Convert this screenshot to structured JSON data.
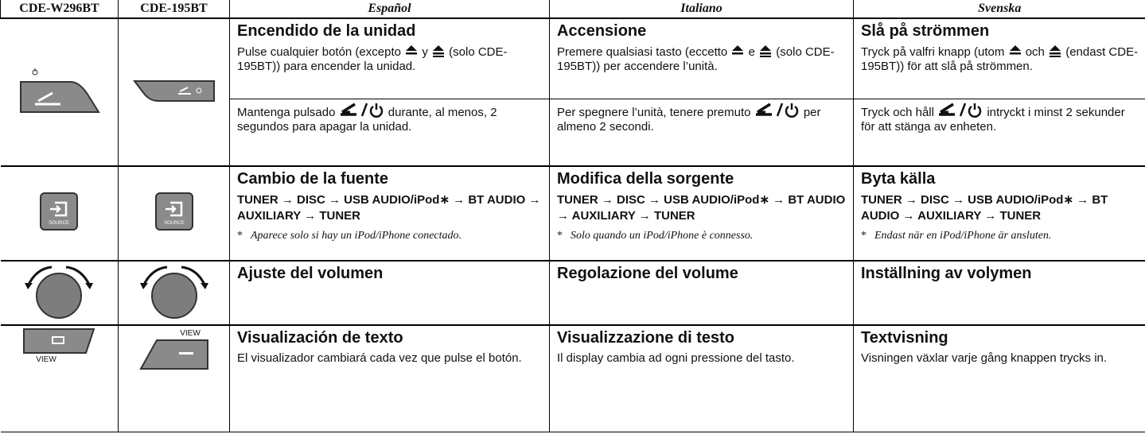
{
  "header": [
    "CDE-W296BT",
    "CDE-195BT",
    "Español",
    "Italiano",
    "Svenska"
  ],
  "button_labels": {
    "source": "SOURCE",
    "view": "VIEW"
  },
  "columns": [
    {
      "power_title": "Encendido de la unidad",
      "power_on": [
        "Pulse cualquier botón (excepto",
        "y",
        "(solo CDE-195BT)) para encender la unidad."
      ],
      "power_off": [
        "Mantenga pulsado",
        "durante, al menos, 2 segundos para apagar la unidad."
      ],
      "source_title": "Cambio de la fuente",
      "source_sequence": "TUNER → DISC → USB AUDIO/iPod∗ → BT AUDIO → AUXILIARY → TUNER",
      "note_marker": "*",
      "note": "Aparece solo si hay un iPod/iPhone conectado.",
      "volume_title": "Ajuste del volumen",
      "view_title": "Visualización de texto",
      "view_text": "El visualizador cambiará cada vez que pulse el botón."
    },
    {
      "power_title": "Accensione",
      "power_on": [
        "Premere qualsiasi tasto (eccetto",
        "e",
        "(solo CDE-195BT)) per accendere l’unità."
      ],
      "power_off": [
        "Per spegnere l’unità, tenere premuto",
        "per almeno 2 secondi."
      ],
      "source_title": "Modifica della sorgente",
      "source_sequence": "TUNER → DISC → USB AUDIO/iPod∗ → BT AUDIO → AUXILIARY → TUNER",
      "note_marker": "*",
      "note": "Solo quando un iPod/iPhone è connesso.",
      "volume_title": "Regolazione del volume",
      "view_title": "Visualizzazione di testo",
      "view_text": "Il display cambia ad ogni pressione del tasto."
    },
    {
      "power_title": "Slå på strömmen",
      "power_on": [
        "Tryck på valfri knapp (utom",
        "och",
        "(endast CDE-195BT)) för att slå på strömmen."
      ],
      "power_off": [
        "Tryck och håll",
        "intryckt i minst 2 sekunder för att stänga av enheten."
      ],
      "source_title": "Byta källa",
      "source_sequence": "TUNER → DISC → USB AUDIO/iPod∗ → BT AUDIO → AUXILIARY → TUNER",
      "note_marker": "*",
      "note": "Endast när en iPod/iPhone är ansluten.",
      "volume_title": "Inställning av volymen",
      "view_title": "Textvisning",
      "view_text": "Visningen växlar varje gång knappen trycks in."
    }
  ]
}
